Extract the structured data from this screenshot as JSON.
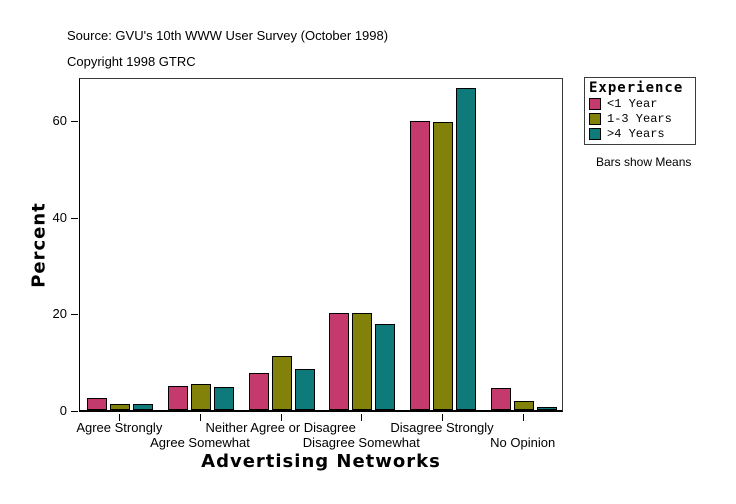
{
  "header": {
    "source_line": "Source: GVU's 10th WWW User Survey (October 1998)",
    "copyright_line": "Copyright 1998 GTRC"
  },
  "chart_data": {
    "type": "bar",
    "title": "",
    "xlabel": "Advertising Networks",
    "ylabel": "Percent",
    "categories": [
      "Agree Strongly",
      "Agree Somewhat",
      "Neither Agree or Disagree",
      "Disagree Somewhat",
      "Disagree Strongly",
      "No Opinion"
    ],
    "series": [
      {
        "name": "<1 Year",
        "color": "#C43A6C",
        "values": [
          2.4,
          4.9,
          7.6,
          20.0,
          59.9,
          4.5
        ]
      },
      {
        "name": "1-3 Years",
        "color": "#82820A",
        "values": [
          1.3,
          5.3,
          11.2,
          20.2,
          59.6,
          1.9
        ]
      },
      {
        "name": ">4 Years",
        "color": "#0F7A7A",
        "values": [
          1.2,
          4.8,
          8.5,
          17.9,
          66.7,
          0.7
        ]
      }
    ],
    "yticks": [
      0,
      20,
      40,
      60
    ],
    "ylim": [
      0,
      69.2
    ],
    "grid": false,
    "legend_position": "right",
    "legend_title": "Experience",
    "legend_note": "Bars show Means"
  }
}
